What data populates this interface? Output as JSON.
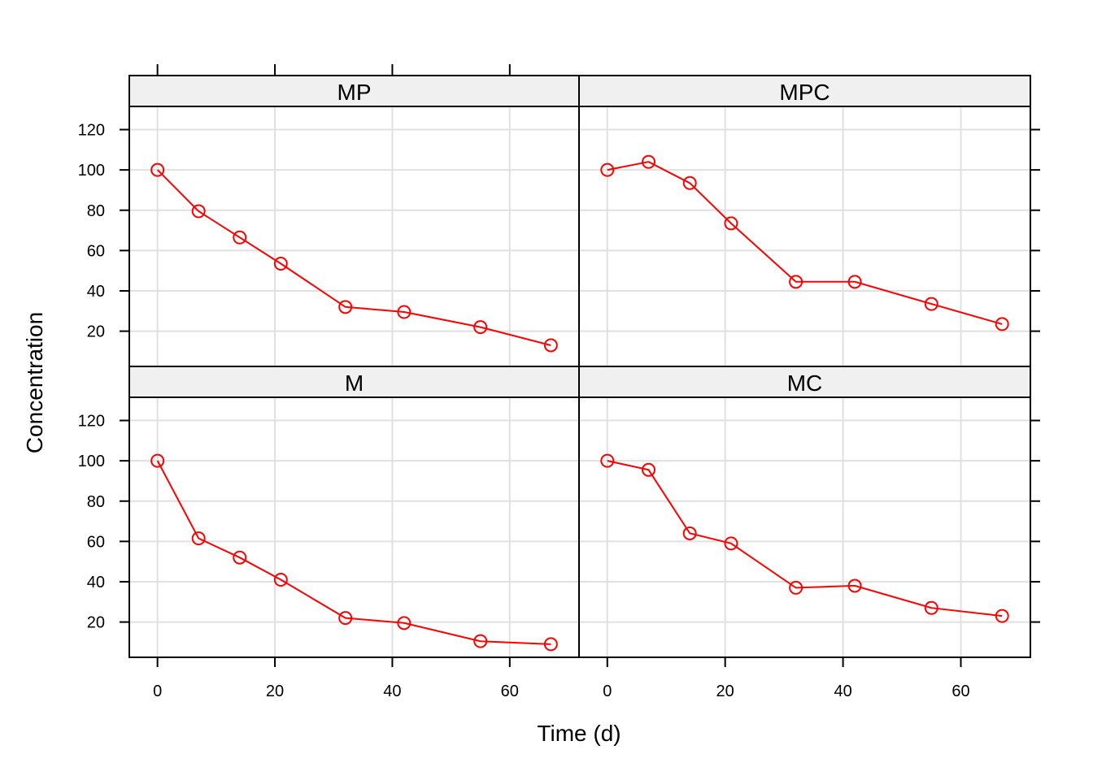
{
  "chart_data": {
    "type": "line",
    "layout": "lattice 2x2",
    "xlabel": "Time (d)",
    "ylabel": "Concentration",
    "xlim": [
      -4.8,
      71.8
    ],
    "ylim": [
      2.5,
      131.5
    ],
    "x_ticks": [
      0,
      20,
      40,
      60
    ],
    "y_ticks": [
      20,
      40,
      60,
      80,
      100,
      120
    ],
    "grid": true,
    "line_color": "#ff0000",
    "panels": [
      {
        "name": "MP",
        "x": [
          0,
          7,
          14,
          21,
          32,
          42,
          55,
          67
        ],
        "y": [
          100,
          79.5,
          66.5,
          53.5,
          32,
          29.5,
          22,
          13
        ]
      },
      {
        "name": "MPC",
        "x": [
          0,
          7,
          14,
          21,
          32,
          42,
          55,
          67
        ],
        "y": [
          100,
          104,
          93.5,
          73.5,
          44.5,
          44.5,
          33.5,
          23.5
        ]
      },
      {
        "name": "M",
        "x": [
          0,
          7,
          14,
          21,
          32,
          42,
          55,
          67
        ],
        "y": [
          100,
          61.5,
          52,
          41,
          22,
          19.5,
          10.5,
          9
        ]
      },
      {
        "name": "MC",
        "x": [
          0,
          7,
          14,
          21,
          32,
          42,
          55,
          67
        ],
        "y": [
          100,
          95.5,
          64,
          59,
          37,
          38,
          27,
          23
        ]
      }
    ]
  }
}
